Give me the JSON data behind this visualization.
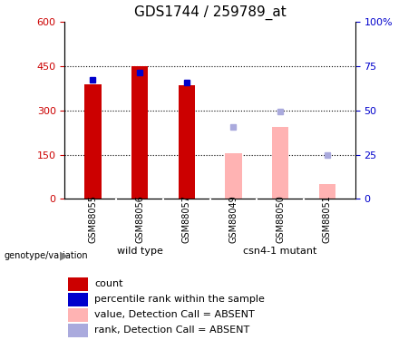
{
  "title": "GDS1744 / 259789_at",
  "categories": [
    "GSM88055",
    "GSM88056",
    "GSM88057",
    "GSM88049",
    "GSM88050",
    "GSM88051"
  ],
  "group_labels": [
    "wild type",
    "csn4-1 mutant"
  ],
  "count_values": [
    390,
    450,
    385,
    null,
    null,
    null
  ],
  "rank_values_left": [
    405,
    430,
    395,
    null,
    null,
    null
  ],
  "absent_value": [
    null,
    null,
    null,
    155,
    245,
    50
  ],
  "absent_rank_left": [
    null,
    null,
    null,
    243,
    298,
    148
  ],
  "ylim_left": [
    0,
    600
  ],
  "ylim_right": [
    0,
    100
  ],
  "yticks_left": [
    0,
    150,
    300,
    450,
    600
  ],
  "ytick_labels_left": [
    "0",
    "150",
    "300",
    "450",
    "600"
  ],
  "ytick_labels_right": [
    "0",
    "25",
    "50",
    "75",
    "100%"
  ],
  "count_color": "#cc0000",
  "rank_color": "#0000cc",
  "absent_value_color": "#ffb3b3",
  "absent_rank_color": "#aaaadd",
  "group_bg_color": "#66ee66",
  "sample_bg_color": "#cccccc",
  "legend_items": [
    {
      "label": "count",
      "color": "#cc0000"
    },
    {
      "label": "percentile rank within the sample",
      "color": "#0000cc"
    },
    {
      "label": "value, Detection Call = ABSENT",
      "color": "#ffb3b3"
    },
    {
      "label": "rank, Detection Call = ABSENT",
      "color": "#aaaadd"
    }
  ]
}
